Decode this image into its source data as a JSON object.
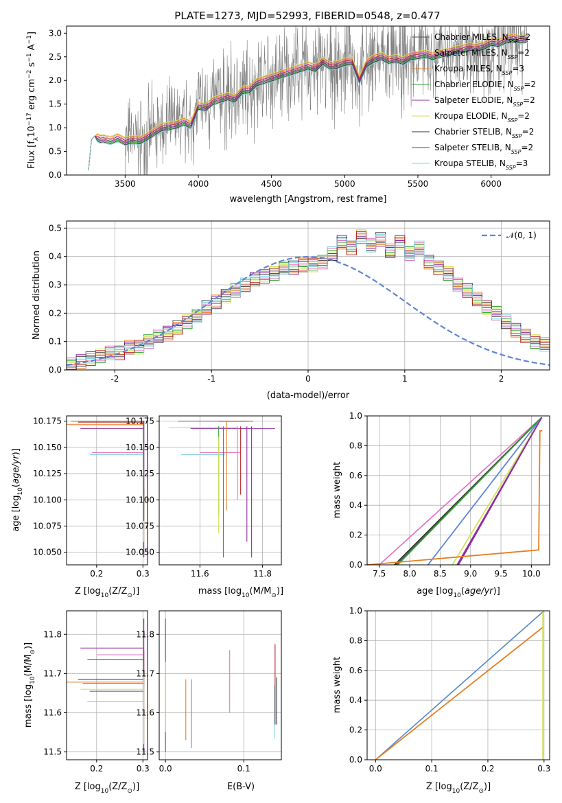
{
  "figure": {
    "title": "PLATE=1273, MJD=52993, FIBERID=0548, z=0.477"
  },
  "colors": {
    "Chabrier MILES": "#555555",
    "Salpeter MILES": "#e377c2",
    "Kroupa MILES": "#e67e22",
    "Chabrier ELODIE": "#2ca02c",
    "Salpeter ELODIE": "#8e2ca0",
    "Kroupa ELODIE": "#d4e157",
    "Chabrier STELIB": "#333333",
    "Salpeter STELIB": "#b22222",
    "Kroupa STELIB": "#80d0e0",
    "gaussian": "#5b86d6",
    "data": "#7f7f7f"
  },
  "chart_data": [
    {
      "id": "spectrum",
      "type": "line",
      "xlabel": "wavelength [Angstrom, rest frame]",
      "ylabel": "Flux [f_λ 10^-17 erg cm^-2 s^-1 A^-1]",
      "xlim": [
        3100,
        6400
      ],
      "ylim": [
        0,
        3.15
      ],
      "xticks": [
        3500,
        4000,
        4500,
        5000,
        5500,
        6000
      ],
      "yticks": [
        0.0,
        0.5,
        1.0,
        1.5,
        2.0,
        2.5,
        3.0
      ],
      "grid": false,
      "legend_position": "upper right",
      "legend": [
        {
          "main": "Chabrier MILES, N",
          "sub": "SSP",
          "tail": "=2"
        },
        {
          "main": "Salpeter MILES, N",
          "sub": "SSP",
          "tail": "=2"
        },
        {
          "main": "Kroupa MILES, N",
          "sub": "SSP",
          "tail": "=3"
        },
        {
          "main": "Chabrier ELODIE, N",
          "sub": "SSP",
          "tail": "=2"
        },
        {
          "main": "Salpeter ELODIE, N",
          "sub": "SSP",
          "tail": "=2"
        },
        {
          "main": "Kroupa ELODIE, N",
          "sub": "SSP",
          "tail": "=2"
        },
        {
          "main": "Chabrier STELIB, N",
          "sub": "SSP",
          "tail": "=2"
        },
        {
          "main": "Salpeter STELIB, N",
          "sub": "SSP",
          "tail": "=2"
        },
        {
          "main": "Kroupa STELIB, N",
          "sub": "SSP",
          "tail": "=3"
        }
      ],
      "model_curve": {
        "x": [
          3250,
          3270,
          3290,
          3310,
          3330,
          3350,
          3400,
          3450,
          3500,
          3550,
          3600,
          3650,
          3700,
          3750,
          3800,
          3850,
          3900,
          3950,
          4000,
          4050,
          4100,
          4150,
          4200,
          4250,
          4300,
          4350,
          4400,
          4450,
          4500,
          4550,
          4600,
          4650,
          4700,
          4750,
          4800,
          4850,
          4900,
          4950,
          5000,
          5050,
          5100,
          5150,
          5200,
          5250,
          5300,
          5350,
          5400,
          5450,
          5500,
          5550,
          5600,
          5650,
          5700,
          5750,
          5800,
          5850,
          5900,
          5950,
          6000,
          6050,
          6100,
          6150,
          6200,
          6250
        ],
        "y": [
          0.1,
          0.75,
          0.82,
          0.78,
          0.75,
          0.76,
          0.72,
          0.78,
          0.7,
          0.74,
          0.72,
          0.8,
          0.9,
          1.0,
          1.02,
          1.05,
          1.12,
          1.05,
          1.45,
          1.42,
          1.55,
          1.6,
          1.65,
          1.6,
          1.78,
          1.8,
          1.95,
          2.0,
          2.05,
          2.1,
          2.15,
          2.2,
          2.25,
          2.3,
          2.25,
          2.4,
          2.3,
          2.32,
          2.38,
          2.4,
          2.0,
          2.35,
          2.45,
          2.5,
          2.42,
          2.45,
          2.4,
          2.5,
          2.52,
          2.55,
          2.5,
          2.55,
          2.58,
          2.62,
          2.65,
          2.7,
          2.68,
          2.72,
          2.8,
          2.78,
          2.85,
          2.9,
          2.85,
          2.88
        ]
      }
    },
    {
      "id": "residuals",
      "type": "line",
      "xlabel": "(data-model)/error",
      "ylabel": "Normed distribution",
      "xlim": [
        -2.5,
        2.5
      ],
      "ylim": [
        0,
        0.525
      ],
      "xticks": [
        -2,
        -1,
        0,
        1,
        2
      ],
      "yticks": [
        0.0,
        0.1,
        0.2,
        0.3,
        0.4,
        0.5
      ],
      "grid": true,
      "legend": [
        {
          "label": "𝒩(0, 1)"
        }
      ],
      "legend_position": "upper right",
      "histogram_bin_width": 0.1,
      "histogram": [
        0.01,
        0.01,
        0.02,
        0.02,
        0.03,
        0.04,
        0.05,
        0.06,
        0.06,
        0.08,
        0.08,
        0.1,
        0.12,
        0.13,
        0.15,
        0.17,
        0.19,
        0.22,
        0.24,
        0.26,
        0.28,
        0.3,
        0.32,
        0.33,
        0.34,
        0.36,
        0.36,
        0.37,
        0.37,
        0.38,
        0.41,
        0.45,
        0.43,
        0.47,
        0.44,
        0.46,
        0.42,
        0.45,
        0.41,
        0.43,
        0.38,
        0.36,
        0.34,
        0.3,
        0.28,
        0.25,
        0.22,
        0.2,
        0.17,
        0.14,
        0.12,
        0.1,
        0.09,
        0.08,
        0.06,
        0.05
      ]
    },
    {
      "id": "age-vs-z",
      "type": "scatter",
      "xlabel": "Z [log10(Z/Z⊙)]",
      "ylabel": "age [log10(age/yr)]",
      "xlim": [
        0.135,
        0.31
      ],
      "ylim": [
        10.038,
        10.18
      ],
      "xticks": [
        0.2,
        0.3
      ],
      "yticks": [
        10.05,
        10.075,
        10.1,
        10.125,
        10.15,
        10.175
      ],
      "grid": true
    },
    {
      "id": "age-vs-mass",
      "type": "scatter",
      "xlabel": "mass [log10(M/M⊙)]",
      "ylabel": "",
      "xlim": [
        11.47,
        11.86
      ],
      "ylim": [
        10.038,
        10.18
      ],
      "xticks": [
        11.6,
        11.8
      ],
      "yticks": [
        10.05,
        10.075,
        10.1,
        10.125,
        10.15,
        10.175
      ],
      "grid": true
    },
    {
      "id": "cumulative-age",
      "type": "line",
      "xlabel": "age [log10(age/yr)]",
      "ylabel": "mass weight",
      "xlim": [
        7.3,
        10.3
      ],
      "ylim": [
        0,
        1
      ],
      "xticks": [
        7.5,
        8.0,
        8.5,
        9.0,
        9.5,
        10.0
      ],
      "yticks": [
        0.0,
        0.2,
        0.4,
        0.6,
        0.8,
        1.0
      ],
      "grid": true
    },
    {
      "id": "mass-vs-z",
      "type": "scatter",
      "xlabel": "Z [log10(Z/Z⊙)]",
      "ylabel": "mass [log10(M/M⊙)]",
      "xlim": [
        0.135,
        0.31
      ],
      "ylim": [
        11.48,
        11.86
      ],
      "xticks": [
        0.2,
        0.3
      ],
      "yticks": [
        11.5,
        11.6,
        11.7,
        11.8
      ],
      "grid": true
    },
    {
      "id": "mass-vs-ebv",
      "type": "scatter",
      "xlabel": "E(B-V)",
      "ylabel": "",
      "xlim": [
        -0.008,
        0.148
      ],
      "ylim": [
        11.48,
        11.86
      ],
      "xticks": [
        0.0,
        0.1
      ],
      "yticks": [
        11.5,
        11.6,
        11.7,
        11.8
      ],
      "grid": true
    },
    {
      "id": "cumulative-z",
      "type": "line",
      "xlabel": "Z [log10(Z/Z⊙)]",
      "ylabel": "mass weight",
      "xlim": [
        -0.015,
        0.31
      ],
      "ylim": [
        0,
        1
      ],
      "xticks": [
        0.0,
        0.1,
        0.2,
        0.3
      ],
      "yticks": [
        0.0,
        0.2,
        0.4,
        0.6,
        0.8,
        1.0
      ],
      "grid": true
    }
  ]
}
